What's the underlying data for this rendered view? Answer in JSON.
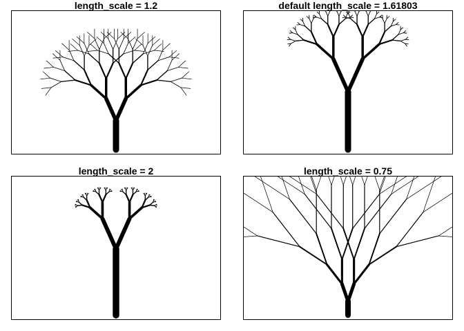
{
  "colors": {
    "background": "#ffffff",
    "ink": "#000000"
  },
  "panels": [
    {
      "title": "length_scale = 1.2",
      "length_scale": 1.2
    },
    {
      "title": "default length_scale = 1.61803",
      "length_scale": 1.61803
    },
    {
      "title": "length_scale = 2",
      "length_scale": 2
    },
    {
      "title": "length_scale = 0.75",
      "length_scale": 0.75
    }
  ]
}
